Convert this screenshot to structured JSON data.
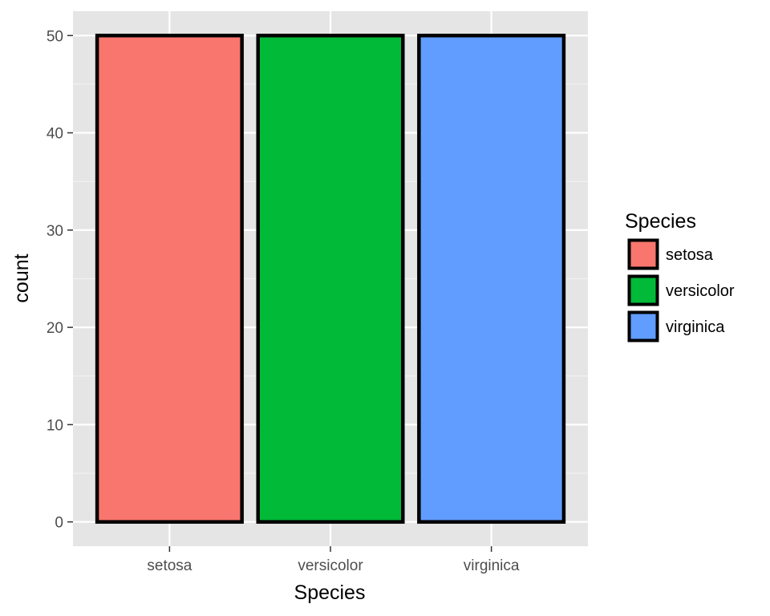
{
  "chart_data": {
    "type": "bar",
    "categories": [
      "setosa",
      "versicolor",
      "virginica"
    ],
    "values": [
      50,
      50,
      50
    ],
    "colors": [
      "#F8766D",
      "#00BA38",
      "#619CFF"
    ],
    "xlabel": "Species",
    "ylabel": "count",
    "ylim": [
      -2.5,
      52.5
    ],
    "yticks": [
      0,
      10,
      20,
      30,
      40,
      50
    ],
    "grid": true,
    "legend": {
      "title": "Species",
      "position": "right",
      "entries": [
        "setosa",
        "versicolor",
        "virginica"
      ]
    }
  }
}
